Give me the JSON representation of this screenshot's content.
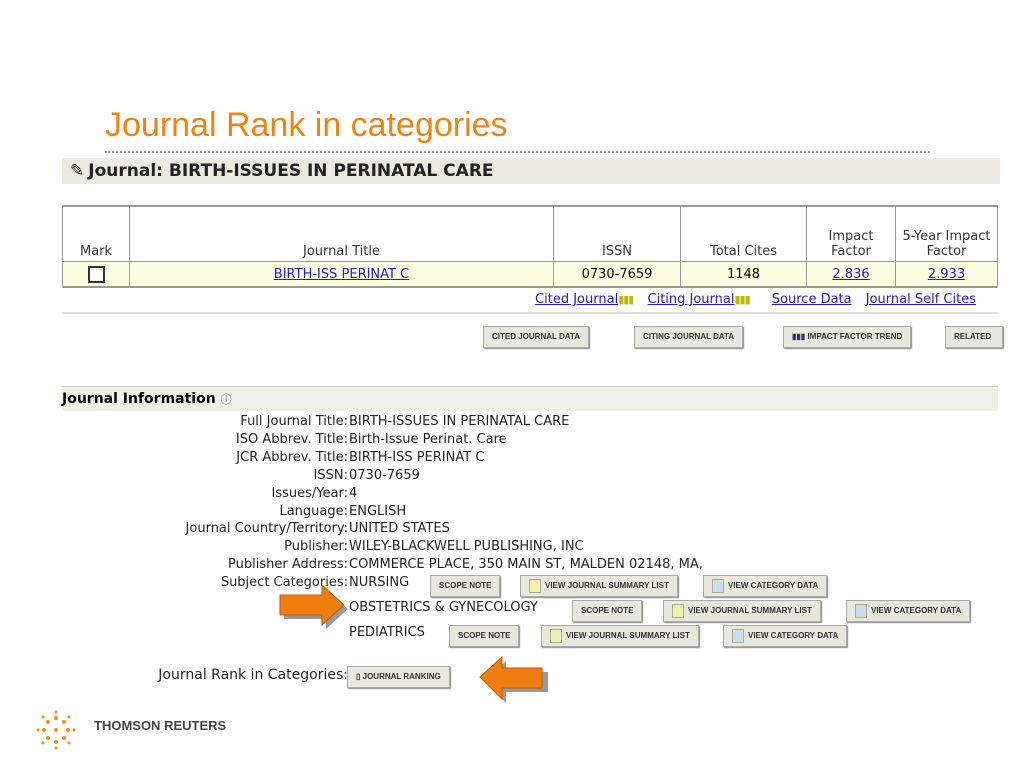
{
  "slide_title": "Journal Rank in categories",
  "journal_header": "Journal: BIRTH-ISSUES IN PERINATAL CARE",
  "table": {
    "headers": [
      "Mark",
      "Journal Title",
      "ISSN",
      "Total Cites",
      "Impact Factor",
      "5-Year Impact Factor"
    ],
    "row": {
      "title": "BIRTH-ISS PERINAT C",
      "issn": "0730-7659",
      "total_cites": "1148",
      "impact_factor": "2.836",
      "five_year_if": "2.933"
    }
  },
  "links": [
    "Cited Journal",
    "Citing Journal",
    "Source Data",
    "Journal Self Cites"
  ],
  "buttons": [
    "CITED JOURNAL DATA",
    "CITING JOURNAL DATA",
    "IMPACT FACTOR TREND",
    "RELATED"
  ],
  "info_title": "Journal Information",
  "info": [
    {
      "label": "Full Journal Title:",
      "value": "BIRTH-ISSUES IN PERINATAL CARE"
    },
    {
      "label": "ISO Abbrev. Title:",
      "value": "Birth-Issue Perinat. Care"
    },
    {
      "label": "JCR Abbrev. Title:",
      "value": "BIRTH-ISS PERINAT C"
    },
    {
      "label": "ISSN:",
      "value": "0730-7659"
    },
    {
      "label": "Issues/Year:",
      "value": "4"
    },
    {
      "label": "Language:",
      "value": "ENGLISH"
    },
    {
      "label": "Journal Country/Territory:",
      "value": "UNITED STATES"
    },
    {
      "label": "Publisher:",
      "value": "WILEY-BLACKWELL PUBLISHING, INC"
    },
    {
      "label": "Publisher Address:",
      "value": "COMMERCE PLACE, 350 MAIN ST, MALDEN 02148, MA,"
    }
  ],
  "subject_label": "Subject Categories:",
  "categories": [
    "NURSING",
    "OBSTETRICS & GYNECOLOGY",
    "PEDIATRICS"
  ],
  "cat_buttons": {
    "scope": "SCOPE NOTE",
    "summary": "VIEW JOURNAL SUMMARY LIST",
    "data": "VIEW CATEGORY DATA"
  },
  "rank_label": "Journal Rank in Categories:",
  "rank_button": "JOURNAL RANKING",
  "brand": "THOMSON REUTERS",
  "colors": {
    "accent": "#f0820f",
    "arrow": "#f07d10"
  }
}
